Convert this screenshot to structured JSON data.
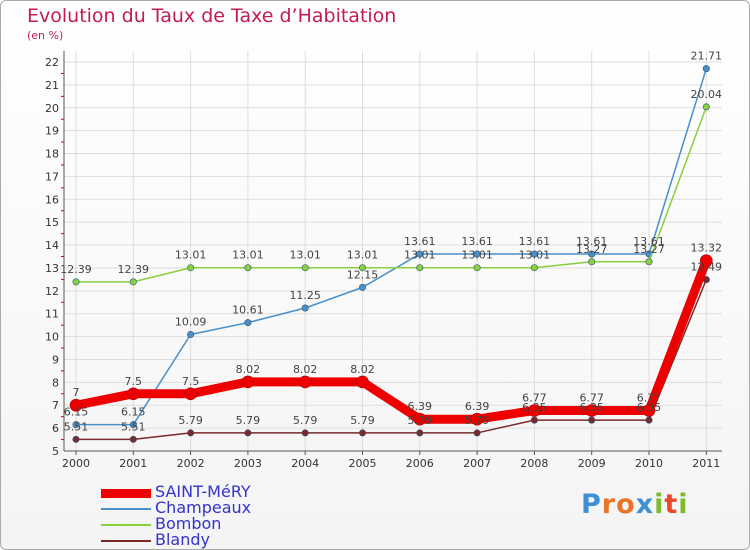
{
  "header": {
    "title": "Evolution du Taux de Taxe d’Habitation",
    "unit": "(en %)"
  },
  "logo": {
    "text": "Proxiti",
    "colors": [
      "#3d8fd6",
      "#e8742a",
      "#e8742a",
      "#3d8fd6",
      "#7dbb2e",
      "#e84a2a",
      "#7dbb2e"
    ]
  },
  "chart_data": {
    "type": "line",
    "x": [
      "2000",
      "2001",
      "2002",
      "2003",
      "2004",
      "2005",
      "2006",
      "2007",
      "2008",
      "2009",
      "2010",
      "2011"
    ],
    "ylim": [
      5,
      22
    ],
    "yticks": [
      "5",
      "6",
      "7",
      "8",
      "9",
      "10",
      "11",
      "12",
      "13",
      "14",
      "15",
      "16",
      "17",
      "18",
      "19",
      "20",
      "21",
      "22"
    ],
    "grid": true,
    "series": [
      {
        "name": "SAINT-MéRY",
        "color": "#ee0000",
        "width": 9,
        "values": [
          7,
          7.5,
          7.5,
          8.02,
          8.02,
          8.02,
          6.39,
          6.39,
          6.77,
          6.77,
          6.77,
          13.32
        ],
        "labels": [
          "7",
          "7.5",
          "7.5",
          "8.02",
          "8.02",
          "8.02",
          "6.39",
          "6.39",
          "6.77",
          "6.77",
          "6.77",
          "13.32"
        ]
      },
      {
        "name": "Champeaux",
        "color": "#4a90c8",
        "width": 1.5,
        "values": [
          6.15,
          6.15,
          10.09,
          10.61,
          11.25,
          12.15,
          13.61,
          13.61,
          13.61,
          13.61,
          13.61,
          21.71
        ],
        "labels": [
          "6.15",
          "6.15",
          "10.09",
          "10.61",
          "11.25",
          "12.15",
          "13.61",
          "13.61",
          "13.61",
          "13.61",
          "13.61",
          "21.71"
        ]
      },
      {
        "name": "Bombon",
        "color": "#88d040",
        "width": 1.5,
        "values": [
          12.39,
          12.39,
          13.01,
          13.01,
          13.01,
          13.01,
          13.01,
          13.01,
          13.01,
          13.27,
          13.27,
          20.04
        ],
        "labels": [
          "12.39",
          "12.39",
          "13.01",
          "13.01",
          "13.01",
          "13.01",
          "13.01",
          "13.01",
          "13.01",
          "13.27",
          "13.27",
          "20.04"
        ]
      },
      {
        "name": "Blandy",
        "color": "#7a2a2a",
        "width": 1.5,
        "values": [
          5.51,
          5.51,
          5.79,
          5.79,
          5.79,
          5.79,
          5.79,
          5.79,
          6.35,
          6.35,
          6.35,
          12.49
        ],
        "labels": [
          "5.51",
          "5.51",
          "5.79",
          "5.79",
          "5.79",
          "5.79",
          "5.79",
          "5.79",
          "6.35",
          "6.35",
          "6.35",
          "12.49"
        ]
      }
    ]
  }
}
